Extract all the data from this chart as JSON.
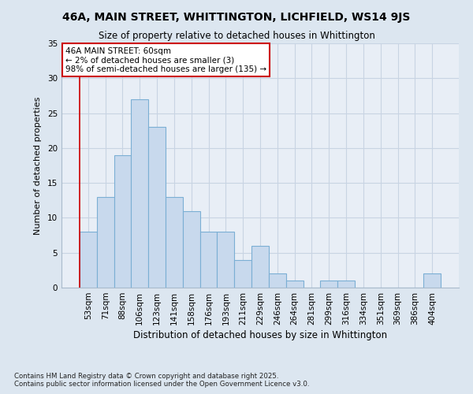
{
  "title1": "46A, MAIN STREET, WHITTINGTON, LICHFIELD, WS14 9JS",
  "title2": "Size of property relative to detached houses in Whittington",
  "xlabel": "Distribution of detached houses by size in Whittington",
  "ylabel": "Number of detached properties",
  "categories": [
    "53sqm",
    "71sqm",
    "88sqm",
    "106sqm",
    "123sqm",
    "141sqm",
    "158sqm",
    "176sqm",
    "193sqm",
    "211sqm",
    "229sqm",
    "246sqm",
    "264sqm",
    "281sqm",
    "299sqm",
    "316sqm",
    "334sqm",
    "351sqm",
    "369sqm",
    "386sqm",
    "404sqm"
  ],
  "values": [
    8,
    13,
    19,
    27,
    23,
    13,
    11,
    8,
    8,
    4,
    6,
    2,
    1,
    0,
    1,
    1,
    0,
    0,
    0,
    0,
    2
  ],
  "bar_color": "#c8d9ed",
  "bar_edge_color": "#7bafd4",
  "grid_color": "#c8d4e3",
  "background_color": "#dce6f0",
  "plot_bg_color": "#e8eef6",
  "annotation_text": "46A MAIN STREET: 60sqm\n← 2% of detached houses are smaller (3)\n98% of semi-detached houses are larger (135) →",
  "annotation_box_color": "#ffffff",
  "annotation_border_color": "#cc0000",
  "red_line_color": "#cc0000",
  "footer": "Contains HM Land Registry data © Crown copyright and database right 2025.\nContains public sector information licensed under the Open Government Licence v3.0.",
  "ylim": [
    0,
    35
  ],
  "yticks": [
    0,
    5,
    10,
    15,
    20,
    25,
    30,
    35
  ]
}
